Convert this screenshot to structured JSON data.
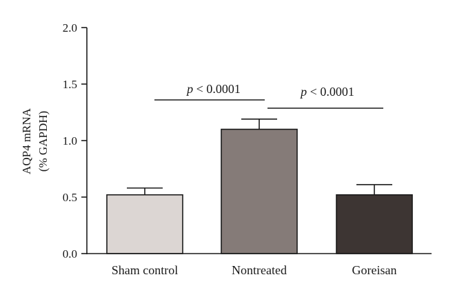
{
  "chart_data": {
    "type": "bar",
    "categories": [
      "Sham control",
      "Nontreated",
      "Goreisan"
    ],
    "values": [
      0.52,
      1.1,
      0.52
    ],
    "errors": [
      0.06,
      0.09,
      0.09
    ],
    "colors": [
      "#dcd6d3",
      "#857b78",
      "#3d3533"
    ],
    "ylabel_lines": [
      "AQP4 mRNA",
      "(% GAPDH)"
    ],
    "ylim": [
      0,
      2.0
    ],
    "yticks": [
      "0.0",
      "0.5",
      "1.0",
      "1.5",
      "2.0"
    ],
    "significance": [
      {
        "from": 0,
        "to": 1,
        "label_p": "p",
        "label_rest": " < 0.0001"
      },
      {
        "from": 1,
        "to": 2,
        "label_p": "p",
        "label_rest": " < 0.0001"
      }
    ]
  }
}
